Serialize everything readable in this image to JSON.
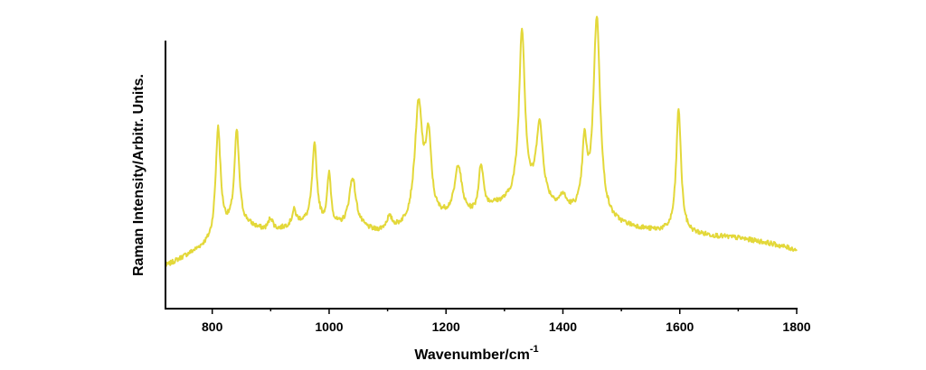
{
  "chart_data": {
    "type": "line",
    "title": "",
    "xlabel": "Wavenumber/cm",
    "xlabel_superscript": "-1",
    "ylabel": "Raman Intensity/Arbitr. Units.",
    "xlim": [
      720,
      1800
    ],
    "ylim": [
      0,
      1
    ],
    "x_ticks": [
      800,
      1000,
      1200,
      1400,
      1600,
      1800
    ],
    "y_ticks": [],
    "grid": false,
    "legend": "none",
    "color": "#e3d83a",
    "baseline": [
      [
        720,
        0.1
      ],
      [
        760,
        0.15
      ],
      [
        800,
        0.2
      ],
      [
        820,
        0.25
      ],
      [
        860,
        0.27
      ],
      [
        900,
        0.24
      ],
      [
        950,
        0.28
      ],
      [
        1000,
        0.26
      ],
      [
        1050,
        0.26
      ],
      [
        1080,
        0.24
      ],
      [
        1120,
        0.25
      ],
      [
        1170,
        0.28
      ],
      [
        1210,
        0.31
      ],
      [
        1250,
        0.31
      ],
      [
        1280,
        0.35
      ],
      [
        1300,
        0.36
      ],
      [
        1330,
        0.38
      ],
      [
        1360,
        0.36
      ],
      [
        1390,
        0.34
      ],
      [
        1420,
        0.32
      ],
      [
        1460,
        0.29
      ],
      [
        1500,
        0.27
      ],
      [
        1550,
        0.25
      ],
      [
        1600,
        0.24
      ],
      [
        1650,
        0.23
      ],
      [
        1700,
        0.22
      ],
      [
        1750,
        0.2
      ],
      [
        1800,
        0.17
      ]
    ],
    "peaks": [
      {
        "x": 810,
        "height": 0.46,
        "width": 5
      },
      {
        "x": 842,
        "height": 0.41,
        "width": 5
      },
      {
        "x": 900,
        "height": 0.06,
        "width": 5
      },
      {
        "x": 940,
        "height": 0.06,
        "width": 4
      },
      {
        "x": 975,
        "height": 0.34,
        "width": 5
      },
      {
        "x": 1000,
        "height": 0.22,
        "width": 4
      },
      {
        "x": 1040,
        "height": 0.21,
        "width": 7
      },
      {
        "x": 1103,
        "height": 0.05,
        "width": 6
      },
      {
        "x": 1153,
        "height": 0.5,
        "width": 8
      },
      {
        "x": 1170,
        "height": 0.33,
        "width": 6
      },
      {
        "x": 1221,
        "height": 0.21,
        "width": 7
      },
      {
        "x": 1260,
        "height": 0.2,
        "width": 5
      },
      {
        "x": 1330,
        "height": 0.72,
        "width": 6
      },
      {
        "x": 1360,
        "height": 0.33,
        "width": 7
      },
      {
        "x": 1400,
        "height": 0.05,
        "width": 6
      },
      {
        "x": 1437,
        "height": 0.28,
        "width": 5
      },
      {
        "x": 1458,
        "height": 0.86,
        "width": 7
      },
      {
        "x": 1598,
        "height": 0.53,
        "width": 5
      }
    ]
  }
}
